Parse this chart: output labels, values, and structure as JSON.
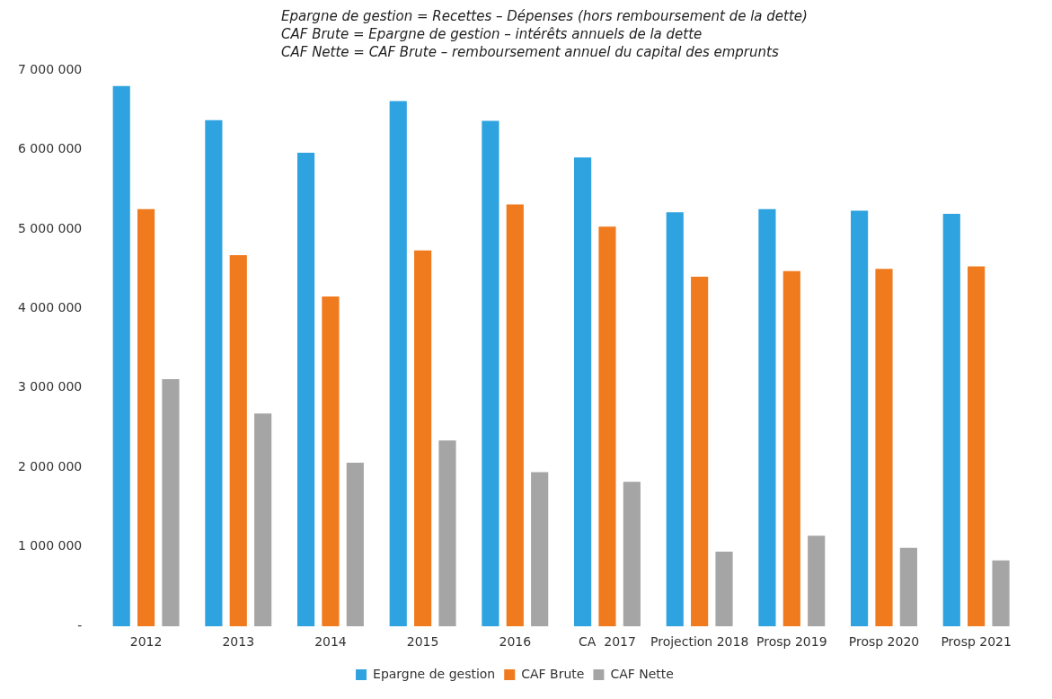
{
  "chart_data": {
    "type": "bar",
    "categories": [
      "2012",
      "2013",
      "2014",
      "2015",
      "2016",
      "CA  2017",
      "Projection 2018",
      "Prosp 2019",
      "Prosp 2020",
      "Prosp 2021"
    ],
    "series": [
      {
        "name": "Epargne de gestion",
        "color": "#2ea3e0",
        "values": [
          6800000,
          6370000,
          5960000,
          6610000,
          6360000,
          5900000,
          5210000,
          5250000,
          5230000,
          5190000
        ]
      },
      {
        "name": "CAF Brute",
        "color": "#f07a1e",
        "values": [
          5250000,
          4670000,
          4150000,
          4730000,
          5310000,
          5030000,
          4400000,
          4470000,
          4500000,
          4530000
        ]
      },
      {
        "name": "CAF Nette",
        "color": "#a5a5a5",
        "values": [
          3110000,
          2680000,
          2060000,
          2340000,
          1940000,
          1820000,
          940000,
          1140000,
          990000,
          830000
        ]
      }
    ],
    "ylim": [
      0,
      7000000
    ],
    "yticks": [
      {
        "value": 0,
        "label": "-"
      },
      {
        "value": 1000000,
        "label": "1 000 000"
      },
      {
        "value": 2000000,
        "label": "2 000 000"
      },
      {
        "value": 3000000,
        "label": "3 000 000"
      },
      {
        "value": 4000000,
        "label": "4 000 000"
      },
      {
        "value": 5000000,
        "label": "5 000 000"
      },
      {
        "value": 6000000,
        "label": "6 000 000"
      },
      {
        "value": 7000000,
        "label": "7 000 000"
      }
    ],
    "grid": false,
    "legend": "bottom",
    "annotations": [
      "Epargne de gestion = Recettes – Dépenses (hors remboursement de la dette)",
      "CAF Brute = Epargne de gestion – intérêts annuels de la dette",
      "CAF Nette = CAF Brute – remboursement annuel du capital des emprunts"
    ]
  }
}
